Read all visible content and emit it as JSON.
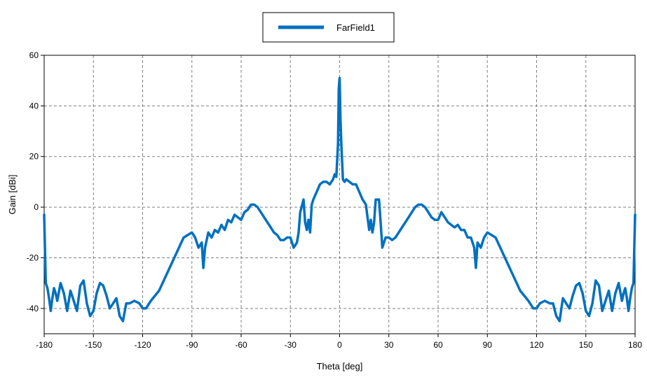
{
  "chart_data": {
    "type": "line",
    "title": "",
    "xlabel": "Theta [deg]",
    "ylabel": "Gain [dBi]",
    "xlim": [
      -180,
      180
    ],
    "ylim": [
      -50,
      60
    ],
    "x_ticks": [
      -180,
      -150,
      -120,
      -90,
      -60,
      -30,
      0,
      30,
      60,
      90,
      120,
      150,
      180
    ],
    "y_ticks": [
      -40,
      -20,
      0,
      20,
      40,
      60
    ],
    "grid": true,
    "legend_position": "top-center",
    "series": [
      {
        "name": "FarField1",
        "color": "#0070c0",
        "x": [
          -180,
          -179,
          -178,
          -177,
          -176,
          -175,
          -174,
          -173,
          -172,
          -170,
          -168,
          -166,
          -164,
          -162,
          -160,
          -158,
          -156,
          -154,
          -152,
          -150,
          -148,
          -146,
          -144,
          -142,
          -140,
          -138,
          -136,
          -134,
          -132,
          -130,
          -128,
          -125,
          -122,
          -120,
          -118,
          -115,
          -110,
          -105,
          -100,
          -95,
          -90,
          -88,
          -86,
          -84,
          -83,
          -82,
          -80,
          -78,
          -76,
          -74,
          -72,
          -70,
          -68,
          -66,
          -64,
          -62,
          -60,
          -58,
          -56,
          -54,
          -52,
          -50,
          -48,
          -46,
          -44,
          -42,
          -40,
          -38,
          -36,
          -34,
          -32,
          -30,
          -28,
          -26,
          -25,
          -24,
          -22,
          -21,
          -20,
          -19,
          -18,
          -17,
          -16,
          -14,
          -12,
          -10,
          -8,
          -6,
          -4,
          -3,
          -2,
          -1,
          -0.5,
          0,
          0.5,
          1,
          2,
          3,
          4,
          6,
          8,
          10,
          12,
          14,
          16,
          17,
          18,
          19,
          20,
          21,
          22,
          24,
          25,
          26,
          28,
          30,
          32,
          34,
          36,
          38,
          40,
          42,
          44,
          46,
          48,
          50,
          52,
          54,
          56,
          58,
          60,
          62,
          64,
          66,
          68,
          70,
          72,
          74,
          76,
          78,
          80,
          82,
          83,
          84,
          86,
          88,
          90,
          95,
          100,
          105,
          110,
          115,
          118,
          120,
          122,
          125,
          128,
          130,
          132,
          134,
          136,
          138,
          140,
          142,
          144,
          146,
          148,
          150,
          152,
          154,
          156,
          158,
          160,
          162,
          164,
          166,
          168,
          170,
          172,
          173,
          174,
          175,
          176,
          177,
          178,
          179,
          180
        ],
        "y": [
          -3,
          -30,
          -32,
          -36,
          -41,
          -36,
          -32,
          -34,
          -37,
          -30,
          -34,
          -41,
          -33,
          -37,
          -41,
          -31,
          -29,
          -38,
          -43,
          -41,
          -34,
          -30,
          -31,
          -35,
          -40,
          -38,
          -36,
          -43,
          -45,
          -38,
          -38,
          -37,
          -38,
          -40,
          -40,
          -37,
          -33,
          -26,
          -19,
          -12,
          -10,
          -12,
          -16,
          -14,
          -24,
          -16,
          -10,
          -12,
          -9,
          -10,
          -7,
          -9,
          -5,
          -6,
          -3,
          -4,
          -5,
          -2,
          -1,
          1,
          1,
          0,
          -2,
          -4,
          -6,
          -8,
          -10,
          -11,
          -13,
          -13,
          -12,
          -12,
          -16,
          -14,
          -10,
          -2,
          3,
          -6,
          -9,
          -5,
          -10,
          1,
          3,
          6,
          9,
          10,
          10,
          9,
          11,
          13,
          12,
          25,
          47,
          51,
          35,
          26,
          11,
          10,
          11,
          10,
          9,
          9,
          6,
          3,
          1,
          -4,
          -9,
          -5,
          -10,
          -6,
          3,
          3,
          -6,
          -16,
          -12,
          -12,
          -13,
          -12,
          -10,
          -8,
          -6,
          -4,
          -2,
          0,
          1,
          1,
          0,
          -2,
          -4,
          -5,
          -5,
          -2,
          -4,
          -6,
          -7,
          -8,
          -7,
          -9,
          -9,
          -12,
          -12,
          -16,
          -24,
          -14,
          -16,
          -12,
          -10,
          -12,
          -19,
          -26,
          -33,
          -37,
          -40,
          -40,
          -38,
          -37,
          -38,
          -38,
          -43,
          -45,
          -36,
          -38,
          -40,
          -35,
          -31,
          -30,
          -34,
          -41,
          -43,
          -38,
          -29,
          -31,
          -41,
          -37,
          -33,
          -41,
          -34,
          -30,
          -37,
          -34,
          -32,
          -36,
          -41,
          -36,
          -32,
          -30,
          -3
        ]
      }
    ]
  }
}
